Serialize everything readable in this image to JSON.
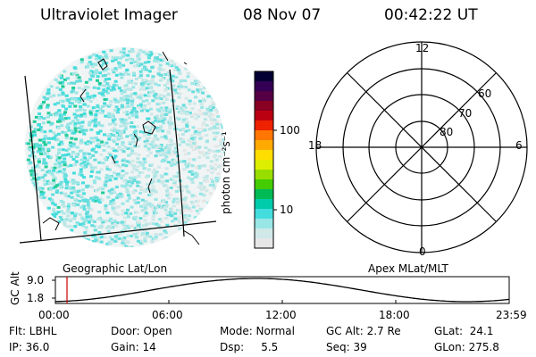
{
  "header": {
    "title": "Ultraviolet Imager",
    "date": "08 Nov 07",
    "time": "00:42:22 UT"
  },
  "colorbar": {
    "label": "photon cm⁻²s⁻¹",
    "ticks": [
      "100",
      "10"
    ],
    "colors": [
      "#000033",
      "#330055",
      "#550044",
      "#880022",
      "#bb0011",
      "#ee2200",
      "#ff7700",
      "#ffaa00",
      "#ffdd00",
      "#ddee00",
      "#99dd00",
      "#44cc00",
      "#00bb55",
      "#00ccaa",
      "#44dddd",
      "#99e6e6",
      "#d0e8e8",
      "#e6e6e6"
    ]
  },
  "left_panel": {
    "label": "Geographic Lat/Lon"
  },
  "right_panel": {
    "label": "Apex MLat/MLT",
    "mlt_labels": {
      "top": "12",
      "bottom": "0",
      "left": "18",
      "right": "6"
    },
    "lat_labels": [
      "60",
      "70",
      "80"
    ]
  },
  "altitude_plot": {
    "ylabel": "GC Alt",
    "yticks": [
      "9.0",
      "1.8"
    ],
    "xticks": [
      "00:00",
      "06:00",
      "12:00",
      "18:00",
      "23:59"
    ]
  },
  "info": {
    "row1": [
      "Flt: LBHL",
      "Door: Open",
      "Mode: Normal",
      "GC Alt: 2.7 Re",
      "GLat:  24.1"
    ],
    "row2": [
      "IP: 36.0",
      "Gain: 14",
      "Dsp:     5.5",
      "Seq: 39",
      "GLon: 275.8"
    ]
  },
  "colors": {
    "aurora_teal": "#44dddd",
    "aurora_green": "#22cc66",
    "marker": "#cc0000"
  }
}
